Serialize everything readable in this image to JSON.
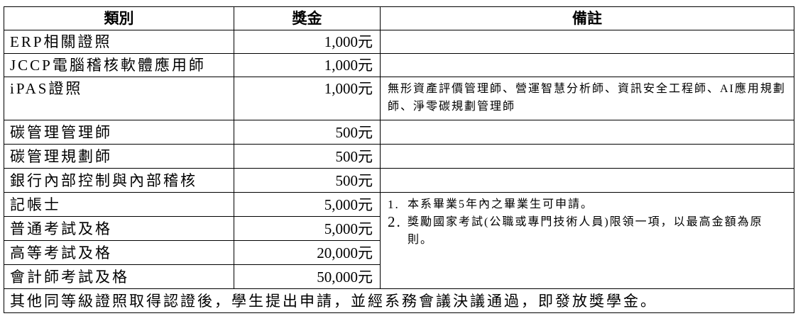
{
  "headers": {
    "category": "類別",
    "amount": "獎金",
    "note": "備註"
  },
  "rows": [
    {
      "category": "ERP相關證照",
      "amount": "1,000元"
    },
    {
      "category": "JCCP電腦稽核軟體應用師",
      "amount": "1,000元"
    },
    {
      "category": "iPAS證照",
      "amount": "1,000元",
      "note": "無形資產評價管理師、營運智慧分析師、資訊安全工程師、AI應用規劃師、淨零碳規劃管理師"
    },
    {
      "category": "碳管理管理師",
      "amount": "500元"
    },
    {
      "category": "碳管理規劃師",
      "amount": "500元"
    },
    {
      "category": "銀行內部控制與內部稽核",
      "amount": "500元"
    },
    {
      "category": "記帳士",
      "amount": "5,000元"
    },
    {
      "category": "普通考試及格",
      "amount": "5,000元"
    },
    {
      "category": "高等考試及格",
      "amount": "20,000元"
    },
    {
      "category": "會計師考試及格",
      "amount": "50,000元"
    }
  ],
  "exam_notes": [
    {
      "num": "1.",
      "text": "本系畢業5年內之畢業生可申請。"
    },
    {
      "num": "2.",
      "text": "獎勵國家考試(公職或專門技術人員)限領一項，以最高金額為原則。"
    }
  ],
  "footer": "其他同等級證照取得認證後，學生提出申請，並經系務會議決議通過，即發放獎學金。"
}
